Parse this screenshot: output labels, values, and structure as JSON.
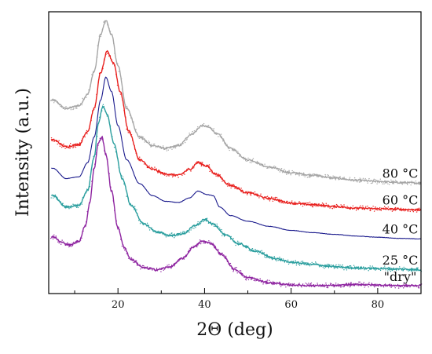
{
  "chart_data": {
    "type": "line",
    "title": "",
    "xlabel": "2Θ (deg)",
    "ylabel": "Intensity (a.u.)",
    "xlim": [
      4,
      90
    ],
    "x_ticks": [
      20,
      40,
      60,
      80
    ],
    "x_tick_labels": [
      "20",
      "40",
      "60",
      "80"
    ],
    "y_ticks": [],
    "grid": false,
    "legend": "inline labels at right end of each curve",
    "series": [
      {
        "name": "80 °C",
        "color": "#a6a6a6",
        "offset": 4,
        "points": [
          [
            5,
            3.4
          ],
          [
            8,
            3.25
          ],
          [
            11,
            3.3
          ],
          [
            13,
            3.5
          ],
          [
            14.5,
            3.9
          ],
          [
            16,
            4.55
          ],
          [
            17.2,
            4.8
          ],
          [
            18.5,
            4.55
          ],
          [
            20,
            4.0
          ],
          [
            22,
            3.25
          ],
          [
            25,
            2.75
          ],
          [
            28,
            2.6
          ],
          [
            31,
            2.55
          ],
          [
            34,
            2.6
          ],
          [
            37,
            2.8
          ],
          [
            39.5,
            2.95
          ],
          [
            41,
            2.92
          ],
          [
            43,
            2.8
          ],
          [
            46,
            2.55
          ],
          [
            50,
            2.35
          ],
          [
            55,
            2.22
          ],
          [
            60,
            2.12
          ],
          [
            65,
            2.08
          ],
          [
            70,
            2.03
          ],
          [
            75,
            1.99
          ],
          [
            80,
            1.97
          ],
          [
            85,
            1.95
          ],
          [
            90,
            1.94
          ]
        ]
      },
      {
        "name": "60 °C",
        "color": "#e8201e",
        "offset": 3,
        "points": [
          [
            5,
            2.7
          ],
          [
            8,
            2.58
          ],
          [
            11,
            2.62
          ],
          [
            13,
            2.85
          ],
          [
            14.5,
            3.25
          ],
          [
            16,
            3.88
          ],
          [
            17.5,
            4.25
          ],
          [
            19,
            4.05
          ],
          [
            20.5,
            3.55
          ],
          [
            22.5,
            2.85
          ],
          [
            25,
            2.35
          ],
          [
            28,
            2.18
          ],
          [
            31,
            2.1
          ],
          [
            34,
            2.08
          ],
          [
            36.5,
            2.18
          ],
          [
            38.5,
            2.3
          ],
          [
            40.5,
            2.24
          ],
          [
            42.5,
            2.1
          ],
          [
            46,
            1.9
          ],
          [
            50,
            1.77
          ],
          [
            55,
            1.67
          ],
          [
            60,
            1.59
          ],
          [
            65,
            1.56
          ],
          [
            70,
            1.53
          ],
          [
            75,
            1.5
          ],
          [
            80,
            1.49
          ],
          [
            85,
            1.48
          ],
          [
            90,
            1.47
          ]
        ]
      },
      {
        "name": "40 °C",
        "color": "#1a1a8c",
        "offset": 2,
        "points": [
          [
            5,
            2.2
          ],
          [
            8,
            2.02
          ],
          [
            11,
            2.05
          ],
          [
            13,
            2.3
          ],
          [
            14.5,
            2.75
          ],
          [
            16,
            3.4
          ],
          [
            17.2,
            3.8
          ],
          [
            18.5,
            3.55
          ],
          [
            20,
            2.95
          ],
          [
            22,
            2.35
          ],
          [
            25,
            1.93
          ],
          [
            28,
            1.72
          ],
          [
            31,
            1.62
          ],
          [
            34,
            1.6
          ],
          [
            36.5,
            1.68
          ],
          [
            38.5,
            1.8
          ],
          [
            40.5,
            1.74
          ],
          [
            42,
            1.72
          ],
          [
            43.5,
            1.52
          ],
          [
            46,
            1.37
          ],
          [
            50,
            1.27
          ],
          [
            55,
            1.18
          ],
          [
            60,
            1.11
          ],
          [
            65,
            1.07
          ],
          [
            70,
            1.04
          ],
          [
            75,
            1.01
          ],
          [
            80,
            0.99
          ],
          [
            85,
            0.97
          ],
          [
            90,
            0.96
          ]
        ]
      },
      {
        "name": "25 °C",
        "color": "#2a9e9e",
        "offset": 1,
        "points": [
          [
            5,
            1.72
          ],
          [
            8,
            1.52
          ],
          [
            11,
            1.55
          ],
          [
            13,
            1.82
          ],
          [
            14.5,
            2.4
          ],
          [
            15.5,
            3.0
          ],
          [
            16.5,
            3.28
          ],
          [
            17.5,
            3.15
          ],
          [
            19,
            2.65
          ],
          [
            21,
            2.02
          ],
          [
            23,
            1.55
          ],
          [
            26,
            1.22
          ],
          [
            29,
            1.08
          ],
          [
            32,
            1.02
          ],
          [
            35,
            1.05
          ],
          [
            38,
            1.2
          ],
          [
            40,
            1.3
          ],
          [
            42,
            1.22
          ],
          [
            45,
            1.02
          ],
          [
            48,
            0.87
          ],
          [
            52,
            0.74
          ],
          [
            56,
            0.62
          ],
          [
            60,
            0.55
          ],
          [
            65,
            0.51
          ],
          [
            70,
            0.47
          ],
          [
            75,
            0.45
          ],
          [
            80,
            0.44
          ],
          [
            85,
            0.43
          ],
          [
            90,
            0.42
          ]
        ]
      },
      {
        "name": "\"dry\"",
        "color": "#8e24a0",
        "offset": 0,
        "points": [
          [
            5,
            1.0
          ],
          [
            7,
            0.9
          ],
          [
            9,
            0.85
          ],
          [
            11,
            0.92
          ],
          [
            12.5,
            1.2
          ],
          [
            13.5,
            1.6
          ],
          [
            14.5,
            2.2
          ],
          [
            15.5,
            2.65
          ],
          [
            16.3,
            2.75
          ],
          [
            17.2,
            2.45
          ],
          [
            18.5,
            1.8
          ],
          [
            20,
            1.15
          ],
          [
            21.5,
            0.8
          ],
          [
            23,
            0.6
          ],
          [
            26,
            0.45
          ],
          [
            29,
            0.42
          ],
          [
            32,
            0.47
          ],
          [
            35,
            0.62
          ],
          [
            37.5,
            0.82
          ],
          [
            39.5,
            0.92
          ],
          [
            41.5,
            0.88
          ],
          [
            44,
            0.68
          ],
          [
            47,
            0.42
          ],
          [
            50,
            0.28
          ],
          [
            55,
            0.19
          ],
          [
            60,
            0.15
          ],
          [
            65,
            0.14
          ],
          [
            70,
            0.14
          ],
          [
            75,
            0.16
          ],
          [
            80,
            0.15
          ],
          [
            85,
            0.14
          ],
          [
            90,
            0.14
          ]
        ]
      }
    ]
  }
}
